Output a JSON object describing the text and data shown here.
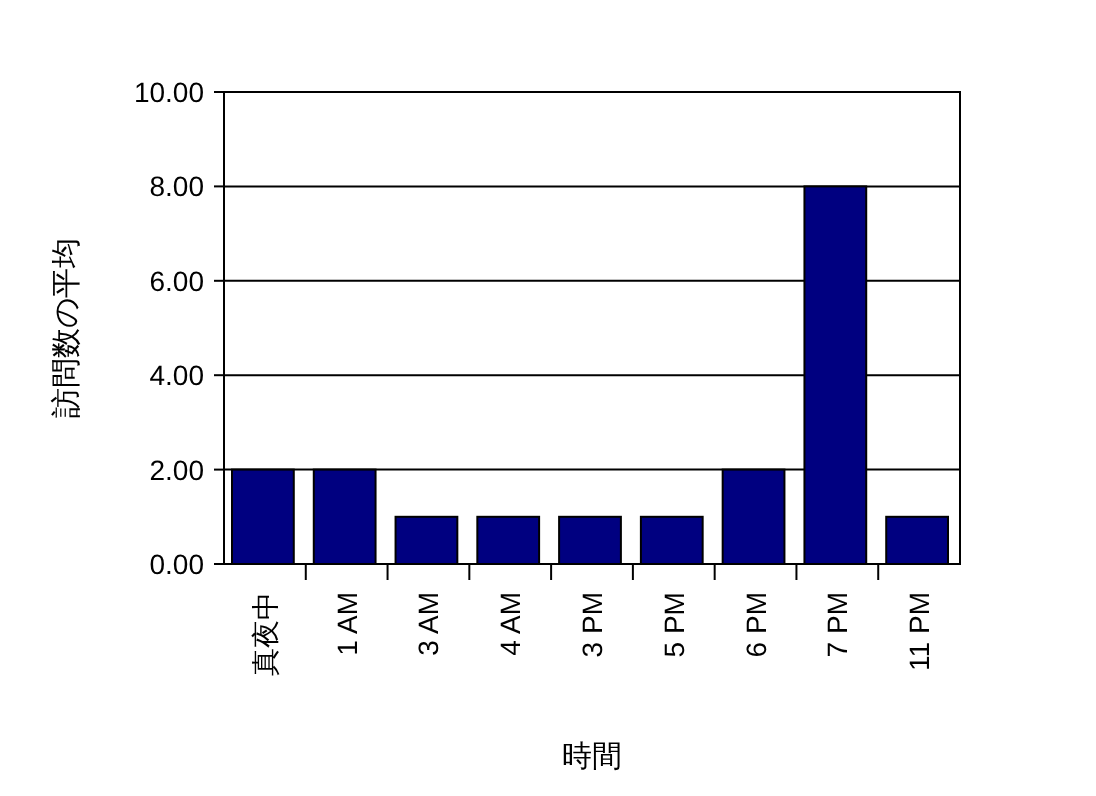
{
  "chart_data": {
    "type": "bar",
    "xlabel": "時間",
    "ylabel": "訪問数の平均",
    "categories": [
      "真夜中",
      "1 AM",
      "3 AM",
      "4 AM",
      "3 PM",
      "5 PM",
      "6 PM",
      "7 PM",
      "11 PM"
    ],
    "values": [
      2,
      2,
      1,
      1,
      1,
      1,
      2,
      8,
      1
    ],
    "color": "#000080",
    "ylim": [
      0,
      10
    ],
    "yticks": [
      {
        "value": 0,
        "label": "0.00"
      },
      {
        "value": 2,
        "label": "2.00"
      },
      {
        "value": 4,
        "label": "4.00"
      },
      {
        "value": 6,
        "label": "6.00"
      },
      {
        "value": 8,
        "label": "8.00"
      },
      {
        "value": 10,
        "label": "10.00"
      }
    ],
    "grid": "y"
  }
}
